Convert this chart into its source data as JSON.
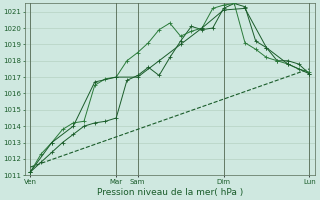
{
  "background_color": "#cfe8e0",
  "grid_color_major": "#b0ccbc",
  "grid_color_minor": "#cfe8e0",
  "line_color1": "#1a5c2a",
  "line_color2": "#2a7a3a",
  "line_color3": "#1a5c2a",
  "line_color4": "#1a5c2a",
  "xlabel": "Pression niveau de la mer( hPa )",
  "ylim": [
    1011.0,
    1021.5
  ],
  "yticks": [
    1011,
    1012,
    1013,
    1014,
    1015,
    1016,
    1017,
    1018,
    1019,
    1020,
    1021
  ],
  "xtick_labels": [
    "Ven",
    "Mar",
    "Sam",
    "Dim",
    "Lun"
  ],
  "xtick_pos": [
    0,
    8,
    10,
    18,
    26
  ],
  "vline_pos": [
    0,
    8,
    10,
    18,
    26
  ],
  "n_points_s1": 27,
  "series1_x": [
    0,
    1,
    2,
    3,
    4,
    5,
    6,
    7,
    8,
    9,
    10,
    11,
    12,
    13,
    14,
    15,
    16,
    17,
    18,
    19,
    20,
    21,
    22,
    23,
    24,
    25,
    26
  ],
  "series1_y": [
    1011.2,
    1011.8,
    1012.4,
    1013.0,
    1013.5,
    1014.0,
    1014.2,
    1014.3,
    1014.5,
    1016.8,
    1017.1,
    1017.6,
    1017.1,
    1018.2,
    1019.2,
    1020.1,
    1019.9,
    1020.0,
    1021.2,
    1021.5,
    1021.3,
    1019.2,
    1018.8,
    1018.0,
    1018.0,
    1017.8,
    1017.2
  ],
  "series2_x": [
    0,
    1,
    2,
    3,
    4,
    5,
    6,
    7,
    8,
    9,
    10,
    11,
    12,
    13,
    14,
    15,
    16,
    17,
    18,
    19,
    20,
    21,
    22,
    23,
    24,
    25,
    26
  ],
  "series2_y": [
    1011.2,
    1012.3,
    1013.0,
    1013.8,
    1014.2,
    1014.3,
    1016.5,
    1016.9,
    1017.0,
    1018.0,
    1018.5,
    1019.1,
    1019.9,
    1020.3,
    1019.5,
    1019.8,
    1020.0,
    1021.2,
    1021.4,
    1021.5,
    1019.1,
    1018.7,
    1018.2,
    1018.0,
    1017.8,
    1017.5,
    1017.3
  ],
  "series3_x": [
    0,
    2,
    4,
    6,
    8,
    10,
    12,
    14,
    16,
    18,
    20,
    22,
    24,
    26
  ],
  "series3_y": [
    1011.2,
    1013.0,
    1014.0,
    1016.7,
    1017.0,
    1017.0,
    1018.0,
    1019.0,
    1020.0,
    1021.1,
    1021.2,
    1018.8,
    1017.8,
    1017.2
  ],
  "series4_x": [
    0,
    26
  ],
  "series4_y": [
    1011.5,
    1017.5
  ],
  "figwidth": 3.2,
  "figheight": 2.0,
  "dpi": 100
}
